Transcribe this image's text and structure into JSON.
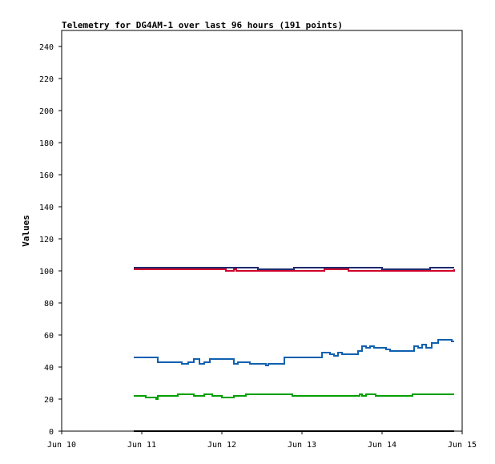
{
  "chart_data": {
    "type": "line",
    "title": "Telemetry for DG4AM-1 over last 96 hours (191 points)",
    "xlabel": "",
    "ylabel": "Values",
    "x_unit": "days",
    "xlim": [
      10,
      15
    ],
    "ylim": [
      0,
      250
    ],
    "x_ticks": [
      {
        "value": 10,
        "label": "Jun 10"
      },
      {
        "value": 11,
        "label": "Jun 11"
      },
      {
        "value": 12,
        "label": "Jun 12"
      },
      {
        "value": 13,
        "label": "Jun 13"
      },
      {
        "value": 14,
        "label": "Jun 14"
      },
      {
        "value": 15,
        "label": "Jun 15"
      }
    ],
    "y_ticks": [
      0,
      20,
      40,
      60,
      80,
      100,
      120,
      140,
      160,
      180,
      200,
      220,
      240
    ],
    "grid": false,
    "series": [
      {
        "color": "#1e2a6e",
        "points": [
          [
            10.9,
            102
          ],
          [
            12.4,
            102
          ],
          [
            12.45,
            101
          ],
          [
            12.85,
            101
          ],
          [
            12.9,
            102
          ],
          [
            13.95,
            102
          ],
          [
            14.0,
            101
          ],
          [
            14.55,
            101
          ],
          [
            14.6,
            102
          ],
          [
            14.9,
            102
          ]
        ]
      },
      {
        "color": "#d0002a",
        "points": [
          [
            10.9,
            101
          ],
          [
            12.02,
            101
          ],
          [
            12.05,
            100
          ],
          [
            12.12,
            100
          ],
          [
            12.15,
            101
          ],
          [
            12.18,
            100
          ],
          [
            13.25,
            100
          ],
          [
            13.28,
            101
          ],
          [
            13.55,
            101
          ],
          [
            13.58,
            100
          ],
          [
            14.88,
            100
          ],
          [
            14.9,
            101
          ]
        ]
      },
      {
        "color": "#1060b0",
        "points": [
          [
            10.9,
            46
          ],
          [
            11.17,
            46
          ],
          [
            11.2,
            43
          ],
          [
            11.45,
            43
          ],
          [
            11.5,
            42
          ],
          [
            11.58,
            43
          ],
          [
            11.65,
            45
          ],
          [
            11.72,
            42
          ],
          [
            11.78,
            43
          ],
          [
            11.85,
            45
          ],
          [
            12.1,
            45
          ],
          [
            12.15,
            42
          ],
          [
            12.2,
            43
          ],
          [
            12.3,
            43
          ],
          [
            12.35,
            42
          ],
          [
            12.45,
            42
          ],
          [
            12.55,
            41
          ],
          [
            12.58,
            42
          ],
          [
            12.7,
            42
          ],
          [
            12.78,
            46
          ],
          [
            13.2,
            46
          ],
          [
            13.25,
            49
          ],
          [
            13.35,
            48
          ],
          [
            13.4,
            47
          ],
          [
            13.45,
            49
          ],
          [
            13.5,
            48
          ],
          [
            13.65,
            48
          ],
          [
            13.7,
            50
          ],
          [
            13.75,
            53
          ],
          [
            13.8,
            52
          ],
          [
            13.85,
            53
          ],
          [
            13.9,
            52
          ],
          [
            14.05,
            51
          ],
          [
            14.1,
            50
          ],
          [
            14.35,
            50
          ],
          [
            14.4,
            53
          ],
          [
            14.45,
            52
          ],
          [
            14.5,
            54
          ],
          [
            14.55,
            52
          ],
          [
            14.62,
            55
          ],
          [
            14.7,
            57
          ],
          [
            14.83,
            57
          ],
          [
            14.87,
            56
          ],
          [
            14.9,
            56
          ]
        ]
      },
      {
        "color": "#00a000",
        "points": [
          [
            10.9,
            22
          ],
          [
            11.0,
            22
          ],
          [
            11.05,
            21
          ],
          [
            11.15,
            21
          ],
          [
            11.18,
            20
          ],
          [
            11.2,
            22
          ],
          [
            11.4,
            22
          ],
          [
            11.45,
            23
          ],
          [
            11.62,
            23
          ],
          [
            11.65,
            22
          ],
          [
            11.75,
            22
          ],
          [
            11.78,
            23
          ],
          [
            11.85,
            23
          ],
          [
            11.88,
            22
          ],
          [
            11.95,
            22
          ],
          [
            12.0,
            21
          ],
          [
            12.12,
            21
          ],
          [
            12.15,
            22
          ],
          [
            12.28,
            22
          ],
          [
            12.3,
            23
          ],
          [
            12.85,
            23
          ],
          [
            12.88,
            22
          ],
          [
            13.7,
            22
          ],
          [
            13.72,
            23
          ],
          [
            13.75,
            22
          ],
          [
            13.8,
            23
          ],
          [
            13.9,
            23
          ],
          [
            13.92,
            22
          ],
          [
            14.35,
            22
          ],
          [
            14.38,
            23
          ],
          [
            14.9,
            23
          ]
        ]
      },
      {
        "color": "#000000",
        "points": [
          [
            10.9,
            0
          ],
          [
            14.9,
            0
          ]
        ]
      }
    ]
  }
}
